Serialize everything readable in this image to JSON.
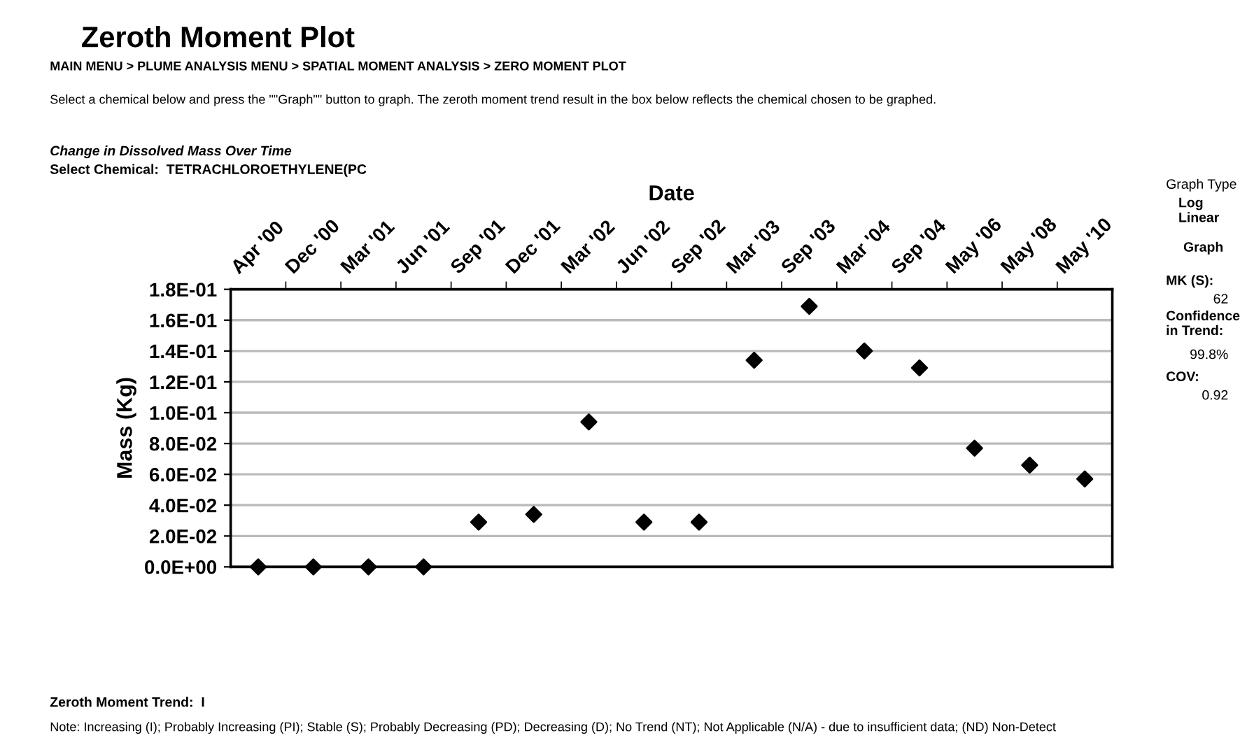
{
  "chart_data": {
    "type": "scatter",
    "title": "Zeroth Moment Plot",
    "subtitle": "Change in Dissolved Mass Over Time",
    "xlabel": "Date",
    "ylabel": "Mass (Kg)",
    "categories": [
      "Apr '00",
      "Dec '00",
      "Mar '01",
      "Jun '01",
      "Sep '01",
      "Dec '01",
      "Mar '02",
      "Jun '02",
      "Sep '02",
      "Mar '03",
      "Sep '03",
      "Mar '04",
      "Sep '04",
      "May '06",
      "May '08",
      "May '10"
    ],
    "series": [
      {
        "color": "#000000",
        "values": [
          0,
          0,
          0,
          0,
          0.029,
          0.034,
          0.094,
          0.029,
          0.029,
          0.134,
          0.169,
          0.14,
          0.129,
          0.077,
          0.066,
          0.057
        ]
      }
    ],
    "ylim": [
      0,
      0.18
    ],
    "yticks": [
      {
        "value": 0,
        "label": "0.0E+00"
      },
      {
        "value": 0.02,
        "label": "2.0E-02"
      },
      {
        "value": 0.04,
        "label": "4.0E-02"
      },
      {
        "value": 0.06,
        "label": "6.0E-02"
      },
      {
        "value": 0.08,
        "label": "8.0E-02"
      },
      {
        "value": 0.1,
        "label": "1.0E-01"
      },
      {
        "value": 0.12,
        "label": "1.2E-01"
      },
      {
        "value": 0.14,
        "label": "1.4E-01"
      },
      {
        "value": 0.16,
        "label": "1.6E-01"
      },
      {
        "value": 0.18,
        "label": "1.8E-01"
      }
    ],
    "grid": "y",
    "marker": "diamond",
    "annotations": [
      "MAIN MENU > PLUME ANALYSIS MENU > SPATIAL MOMENT ANALYSIS > ZERO MOMENT PLOT",
      "Select a chemical below and press the \"\"Graph\"\" button to graph. The zeroth moment trend result in the box below reflects the chemical chosen to be graphed.",
      "Select Chemical:  TETRACHLOROETHYLENE(PC",
      "Graph Type",
      "Log",
      "Linear",
      "Graph",
      "MK (S):",
      "62",
      "Confidence in Trend:",
      "99.8%",
      "COV:",
      "0.92",
      "Zeroth Moment Trend:  I",
      "Note: Increasing (I); Probably Increasing (PI); Stable (S); Probably Decreasing (PD); Decreasing (D); No Trend (NT); Not Applicable (N/A) - due to insufficient data; (ND) Non-Detect"
    ]
  }
}
